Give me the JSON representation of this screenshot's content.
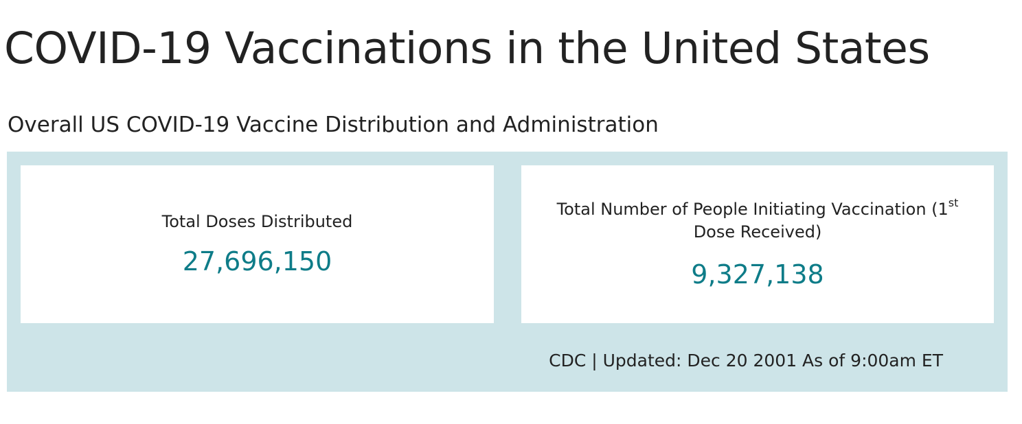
{
  "page": {
    "title": "COVID-19 Vaccinations in the United States"
  },
  "section": {
    "title": "Overall US COVID-19 Vaccine Distribution and Administration"
  },
  "cards": [
    {
      "label": "Total Doses Distributed",
      "value": "27,696,150"
    },
    {
      "label_prefix": "Total Number of People Initiating Vaccination (1",
      "label_sup": "st",
      "label_suffix": " Dose Received)",
      "value": "9,327,138"
    }
  ],
  "footer": {
    "text": "CDC | Updated: Dec 20 2001 As of 9:00am ET"
  },
  "colors": {
    "panel_background": "#cde4e8",
    "value_accent": "#0e7c88",
    "card_background": "#ffffff"
  }
}
